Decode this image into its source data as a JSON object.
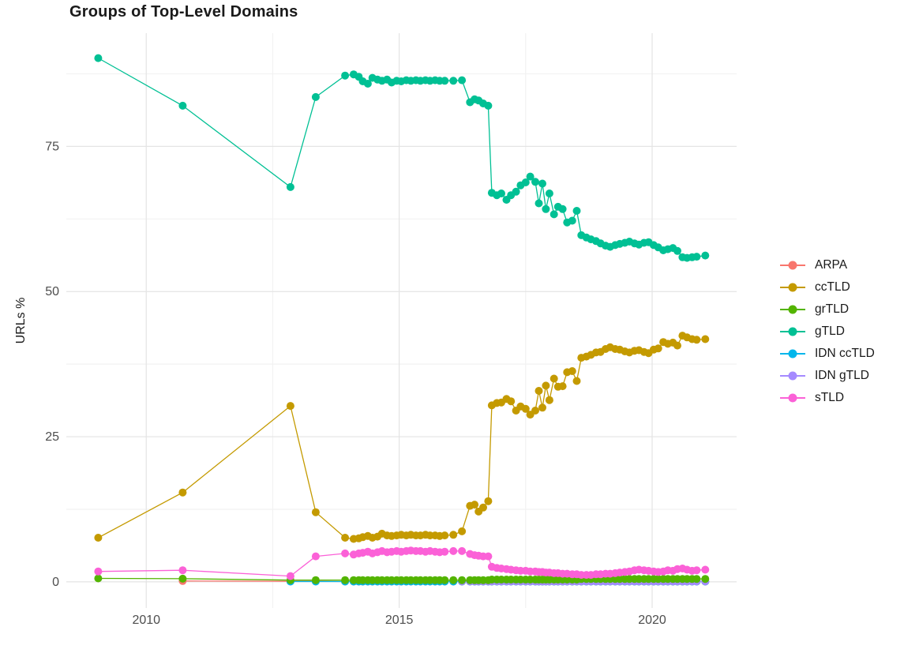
{
  "title": "Groups of Top-Level Domains",
  "colors": {
    "background": "#ffffff",
    "grid_major": "#e4e4e4",
    "grid_minor": "#f2f2f2",
    "axis_text": "#4d4d4d",
    "title_text": "#1a1a1a"
  },
  "chart_data": {
    "type": "line",
    "title": "Groups of Top-Level Domains",
    "xlabel": "",
    "ylabel": "URLs %",
    "grid": true,
    "legend_position": "right",
    "x_domain": [
      2008.42,
      2021.67
    ],
    "y_domain": [
      -4.5,
      94.5
    ],
    "x_breaks": [
      2010,
      2015,
      2020
    ],
    "x_break_labels": [
      "2010",
      "2015",
      "2020"
    ],
    "x_minor_breaks": [
      2012.5,
      2017.5
    ],
    "y_breaks": [
      0,
      25,
      50,
      75
    ],
    "y_break_labels": [
      "0",
      "25",
      "50",
      "75"
    ],
    "y_minor_breaks": [
      12.5,
      37.5,
      62.5,
      87.5
    ],
    "draw_order": [
      "ARPA",
      "IDN ccTLD",
      "IDN gTLD",
      "grTLD",
      "sTLD",
      "ccTLD",
      "gTLD"
    ],
    "x_grid": [
      2009.05,
      2010.72,
      2012.85,
      2013.35,
      2013.93,
      2014.1,
      2014.2,
      2014.28,
      2014.38,
      2014.47,
      2014.57,
      2014.66,
      2014.76,
      2014.85,
      2014.95,
      2015.04,
      2015.14,
      2015.23,
      2015.33,
      2015.42,
      2015.52,
      2015.61,
      2015.71,
      2015.8,
      2015.9,
      2016.07,
      2016.24,
      2016.4,
      2016.49,
      2016.57,
      2016.66,
      2016.76,
      2016.83,
      2016.93,
      2017.02,
      2017.12,
      2017.21,
      2017.31,
      2017.4,
      2017.5,
      2017.59,
      2017.69,
      2017.76,
      2017.83,
      2017.9,
      2017.97,
      2018.06,
      2018.14,
      2018.23,
      2018.32,
      2018.42,
      2018.51,
      2018.6,
      2018.7,
      2018.79,
      2018.89,
      2018.98,
      2019.08,
      2019.17,
      2019.27,
      2019.36,
      2019.46,
      2019.55,
      2019.65,
      2019.74,
      2019.84,
      2019.93,
      2020.03,
      2020.12,
      2020.22,
      2020.31,
      2020.41,
      2020.5,
      2020.6,
      2020.69,
      2020.79,
      2020.88,
      2021.05
    ],
    "series": [
      {
        "name": "ARPA",
        "color": "#F8766D",
        "start_index": 1,
        "values": [
          0.15,
          0.1,
          0.1,
          0.05
        ],
        "fill_value": 0.05
      },
      {
        "name": "ccTLD",
        "color": "#C49A00",
        "start_index": 0,
        "values": [
          7.6,
          15.4,
          30.3,
          12.0,
          7.6,
          7.4,
          7.5,
          7.7,
          7.9,
          7.6,
          7.8,
          8.3,
          8.0,
          7.9,
          8.0,
          8.1,
          8.0,
          8.1,
          8.0,
          8.0,
          8.1,
          8.0,
          8.0,
          7.9,
          8.0,
          8.1,
          8.7,
          13.1,
          13.3,
          12.1,
          12.8,
          13.9,
          30.4,
          30.8,
          30.9,
          31.5,
          31.1,
          29.5,
          30.2,
          29.8,
          28.8,
          29.5,
          32.9,
          30.0,
          33.8,
          31.3,
          35.0,
          33.6,
          33.7,
          36.1,
          36.3,
          34.6,
          38.6,
          38.8,
          39.1,
          39.5,
          39.6,
          40.1,
          40.4,
          40.1,
          40.0,
          39.7,
          39.5,
          39.8,
          39.9,
          39.6,
          39.4,
          40.0,
          40.2,
          41.3,
          41.0,
          41.2,
          40.7,
          42.4,
          42.1,
          41.8,
          41.7,
          41.8
        ]
      },
      {
        "name": "grTLD",
        "color": "#53B400",
        "start_index": 0,
        "values": [
          0.6,
          0.55,
          0.3,
          0.3,
          0.3,
          0.3,
          0.3,
          0.3,
          0.3,
          0.3,
          0.3,
          0.3,
          0.3,
          0.3,
          0.3,
          0.3,
          0.3,
          0.3,
          0.3,
          0.3,
          0.3,
          0.3,
          0.3,
          0.3,
          0.3,
          0.3,
          0.3,
          0.3,
          0.3,
          0.3,
          0.3,
          0.3,
          0.4,
          0.4,
          0.4,
          0.4,
          0.4,
          0.4,
          0.4,
          0.4,
          0.4,
          0.4,
          0.4,
          0.4,
          0.4,
          0.4,
          0.4,
          0.4,
          0.4,
          0.4,
          0.4,
          0.4,
          0.5,
          0.5,
          0.5,
          0.5,
          0.5,
          0.5,
          0.5,
          0.5,
          0.5,
          0.5,
          0.5,
          0.5,
          0.5,
          0.5,
          0.5,
          0.5,
          0.5,
          0.5,
          0.5,
          0.5,
          0.5,
          0.5,
          0.5,
          0.5,
          0.5,
          0.5
        ]
      },
      {
        "name": "gTLD",
        "color": "#00C094",
        "start_index": 0,
        "values": [
          90.2,
          82.0,
          68.0,
          83.5,
          87.2,
          87.4,
          87.0,
          86.2,
          85.8,
          86.8,
          86.5,
          86.3,
          86.5,
          86.0,
          86.3,
          86.2,
          86.4,
          86.3,
          86.4,
          86.3,
          86.4,
          86.3,
          86.4,
          86.3,
          86.3,
          86.3,
          86.4,
          82.6,
          83.1,
          82.9,
          82.4,
          82.0,
          67.0,
          66.6,
          66.9,
          65.8,
          66.6,
          67.2,
          68.3,
          68.8,
          69.8,
          68.9,
          65.2,
          68.6,
          64.2,
          66.9,
          63.3,
          64.6,
          64.2,
          61.9,
          62.2,
          63.9,
          59.7,
          59.3,
          59.0,
          58.7,
          58.3,
          57.9,
          57.7,
          58.0,
          58.2,
          58.4,
          58.6,
          58.3,
          58.1,
          58.4,
          58.5,
          58.0,
          57.6,
          57.1,
          57.3,
          57.5,
          57.0,
          55.9,
          55.8,
          55.9,
          56.0,
          56.2
        ]
      },
      {
        "name": "IDN ccTLD",
        "color": "#00B6EB",
        "start_index": 2,
        "values": [],
        "fill_value": 0.05
      },
      {
        "name": "IDN gTLD",
        "color": "#A58AFF",
        "start_index": 26,
        "values": [],
        "fill_value": 0.1
      },
      {
        "name": "sTLD",
        "color": "#FB61D7",
        "start_index": 0,
        "values": [
          1.8,
          2.0,
          1.0,
          4.4,
          4.9,
          4.7,
          4.9,
          5.0,
          5.2,
          4.9,
          5.1,
          5.3,
          5.1,
          5.2,
          5.3,
          5.2,
          5.3,
          5.4,
          5.3,
          5.3,
          5.2,
          5.3,
          5.2,
          5.1,
          5.2,
          5.3,
          5.3,
          4.8,
          4.6,
          4.5,
          4.4,
          4.4,
          2.6,
          2.4,
          2.3,
          2.2,
          2.1,
          2.0,
          1.9,
          1.9,
          1.8,
          1.8,
          1.7,
          1.7,
          1.6,
          1.6,
          1.5,
          1.5,
          1.4,
          1.4,
          1.3,
          1.3,
          1.2,
          1.2,
          1.2,
          1.3,
          1.3,
          1.4,
          1.4,
          1.5,
          1.6,
          1.7,
          1.8,
          2.0,
          2.1,
          2.0,
          1.9,
          1.8,
          1.7,
          1.8,
          2.0,
          1.9,
          2.2,
          2.3,
          2.1,
          1.9,
          2.0,
          2.1
        ]
      }
    ]
  }
}
